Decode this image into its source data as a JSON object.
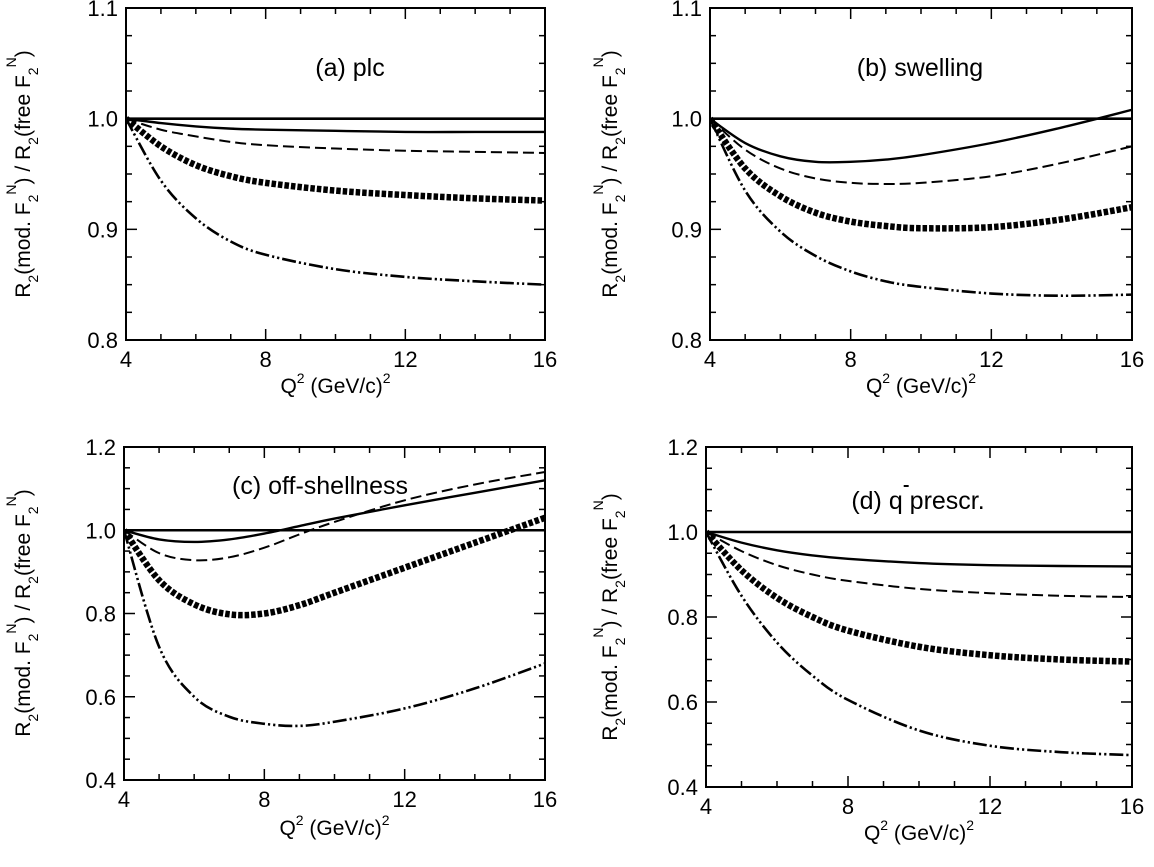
{
  "chart_data": [
    {
      "type": "line",
      "title": "(a)  plc",
      "xlabel": "Q2 (GeV/c)2",
      "ylabel": "R2(mod. F2N) / R2(free F2N)",
      "xlim": [
        4,
        16
      ],
      "ylim": [
        0.8,
        1.1
      ],
      "xticks": [
        "4",
        "8",
        "12",
        "16"
      ],
      "yticks": [
        "0.8",
        "0.9",
        "1.0",
        "1.1"
      ],
      "grid": false,
      "series": [
        {
          "style": "solid-thick",
          "x": [
            4,
            16
          ],
          "y": [
            1.0,
            1.0
          ]
        },
        {
          "style": "solid",
          "x": [
            4,
            5,
            6,
            7,
            8,
            10,
            12,
            14,
            16
          ],
          "y": [
            1.0,
            0.996,
            0.993,
            0.991,
            0.99,
            0.989,
            0.988,
            0.988,
            0.988
          ]
        },
        {
          "style": "dashed",
          "x": [
            4,
            5,
            6,
            7,
            8,
            10,
            12,
            14,
            16
          ],
          "y": [
            1.0,
            0.99,
            0.984,
            0.979,
            0.976,
            0.973,
            0.971,
            0.97,
            0.969
          ]
        },
        {
          "style": "dotted-thick",
          "x": [
            4,
            5,
            6,
            7,
            8,
            10,
            12,
            14,
            16
          ],
          "y": [
            1.0,
            0.975,
            0.958,
            0.948,
            0.942,
            0.935,
            0.931,
            0.928,
            0.926
          ]
        },
        {
          "style": "dash-dot-dot",
          "x": [
            4,
            5,
            6,
            7,
            8,
            10,
            12,
            14,
            16
          ],
          "y": [
            1.0,
            0.944,
            0.91,
            0.889,
            0.877,
            0.864,
            0.857,
            0.853,
            0.85
          ]
        }
      ]
    },
    {
      "type": "line",
      "title": "(b)   swelling",
      "xlabel": "Q2 (GeV/c)2",
      "ylabel": "R2(mod. F2N) / R2(free F2N)",
      "xlim": [
        4,
        16
      ],
      "ylim": [
        0.8,
        1.1
      ],
      "xticks": [
        "4",
        "8",
        "12",
        "16"
      ],
      "yticks": [
        "0.8",
        "0.9",
        "1.0",
        "1.1"
      ],
      "grid": false,
      "series": [
        {
          "style": "solid-thick",
          "x": [
            4,
            16
          ],
          "y": [
            1.0,
            1.0
          ]
        },
        {
          "style": "solid",
          "x": [
            4,
            5,
            6,
            7,
            8,
            9,
            10,
            12,
            14,
            16
          ],
          "y": [
            1.0,
            0.978,
            0.966,
            0.961,
            0.961,
            0.963,
            0.967,
            0.978,
            0.992,
            1.008
          ]
        },
        {
          "style": "dashed",
          "x": [
            4,
            5,
            6,
            7,
            8,
            9,
            10,
            12,
            14,
            16
          ],
          "y": [
            1.0,
            0.972,
            0.955,
            0.946,
            0.942,
            0.941,
            0.942,
            0.948,
            0.96,
            0.975
          ]
        },
        {
          "style": "dotted-thick",
          "x": [
            4,
            5,
            6,
            7,
            8,
            9,
            10,
            12,
            14,
            16
          ],
          "y": [
            1.0,
            0.955,
            0.93,
            0.915,
            0.907,
            0.903,
            0.901,
            0.902,
            0.909,
            0.92
          ]
        },
        {
          "style": "dash-dot-dot",
          "x": [
            4,
            5,
            6,
            7,
            8,
            9,
            10,
            12,
            14,
            16
          ],
          "y": [
            1.0,
            0.935,
            0.898,
            0.876,
            0.862,
            0.853,
            0.848,
            0.842,
            0.84,
            0.841
          ]
        }
      ]
    },
    {
      "type": "line",
      "title": "(c)   off-shellness",
      "xlabel": "Q2 (GeV/c)2",
      "ylabel": "R2(mod. F2N)/ R2(free F2N)",
      "xlim": [
        4,
        16
      ],
      "ylim": [
        0.4,
        1.2
      ],
      "xticks": [
        "4",
        "8",
        "12",
        "16"
      ],
      "yticks": [
        "0.4",
        "0.6",
        "0.8",
        "1.0",
        "1.2"
      ],
      "grid": false,
      "series": [
        {
          "style": "solid-thick",
          "x": [
            4,
            16
          ],
          "y": [
            1.0,
            1.0
          ]
        },
        {
          "style": "solid",
          "x": [
            4,
            5,
            6,
            7,
            8,
            9,
            10,
            12,
            14,
            16
          ],
          "y": [
            1.0,
            0.978,
            0.972,
            0.978,
            0.992,
            1.01,
            1.028,
            1.06,
            1.09,
            1.12
          ]
        },
        {
          "style": "dashed",
          "x": [
            4,
            5,
            6,
            7,
            8,
            9,
            10,
            12,
            14,
            16
          ],
          "y": [
            1.0,
            0.945,
            0.928,
            0.935,
            0.958,
            0.99,
            1.02,
            1.072,
            1.11,
            1.14
          ]
        },
        {
          "style": "dotted-thick",
          "x": [
            4,
            5,
            6,
            7,
            8,
            9,
            10,
            12,
            14,
            16
          ],
          "y": [
            1.0,
            0.88,
            0.822,
            0.798,
            0.8,
            0.82,
            0.85,
            0.91,
            0.97,
            1.03
          ]
        },
        {
          "style": "dash-dot-dot",
          "x": [
            4,
            5,
            6,
            7,
            8,
            9,
            10,
            12,
            14,
            16
          ],
          "y": [
            1.0,
            0.72,
            0.6,
            0.552,
            0.535,
            0.53,
            0.54,
            0.572,
            0.62,
            0.68
          ]
        }
      ]
    },
    {
      "type": "line",
      "title": "(d)  q  prescr.",
      "title_overline": "q",
      "xlabel": "Q2 (GeV/c)2",
      "ylabel": "R2(mod. F2N) / R2(free F2N)",
      "xlim": [
        4,
        16
      ],
      "ylim": [
        0.4,
        1.2
      ],
      "xticks": [
        "4",
        "8",
        "12",
        "16"
      ],
      "yticks": [
        "0.4",
        "0.6",
        "0.8",
        "1.0",
        "1.2"
      ],
      "grid": false,
      "series": [
        {
          "style": "solid-thick",
          "x": [
            4,
            16
          ],
          "y": [
            1.0,
            1.0
          ]
        },
        {
          "style": "solid",
          "x": [
            4,
            5,
            6,
            7,
            8,
            10,
            12,
            14,
            16
          ],
          "y": [
            1.0,
            0.975,
            0.957,
            0.945,
            0.937,
            0.927,
            0.922,
            0.92,
            0.919
          ]
        },
        {
          "style": "dashed",
          "x": [
            4,
            5,
            6,
            7,
            8,
            10,
            12,
            14,
            16
          ],
          "y": [
            1.0,
            0.955,
            0.922,
            0.9,
            0.885,
            0.866,
            0.856,
            0.85,
            0.847
          ]
        },
        {
          "style": "dotted-thick",
          "x": [
            4,
            5,
            6,
            7,
            8,
            10,
            12,
            14,
            16
          ],
          "y": [
            1.0,
            0.91,
            0.845,
            0.8,
            0.768,
            0.73,
            0.71,
            0.7,
            0.695
          ]
        },
        {
          "style": "dash-dot-dot",
          "x": [
            4,
            5,
            6,
            7,
            8,
            10,
            12,
            14,
            16
          ],
          "y": [
            1.0,
            0.85,
            0.74,
            0.662,
            0.605,
            0.533,
            0.497,
            0.482,
            0.475
          ]
        }
      ]
    }
  ]
}
